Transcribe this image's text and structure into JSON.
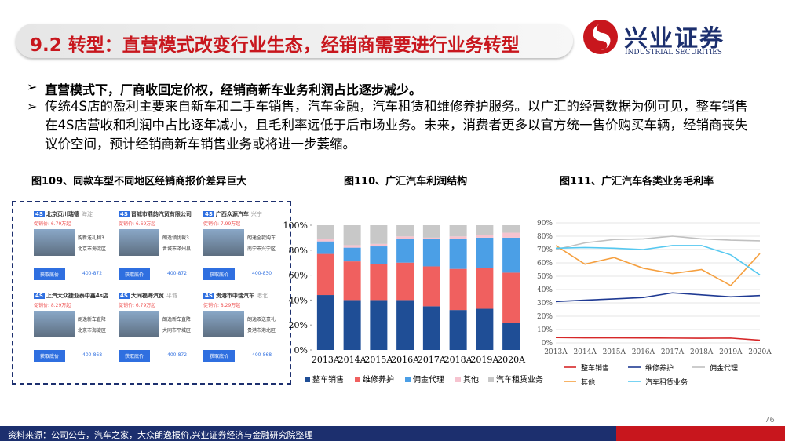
{
  "header": {
    "title": "9.2 转型：直营模式改变行业生态，经销商需要进行业务转型",
    "logo_cn": "兴业证券",
    "logo_en": "INDUSTRIAL SECURITIES"
  },
  "bullets": [
    "直营模式下，厂商收回定价权，经销商新车业务利润占比逐步减少。",
    "传统4S店的盈利主要来自新车和二手车销售，汽车金融，汽车租赁和维修养护服务。以广汇的经营数据为例可见，整车销售在4S店营收和利润中占比逐年减小，且毛利率远低于后市场业务。未来，消费者更多以官方统一售价购买车辆，经销商丧失议价空间，预计经销商新车销售业务或将进一步萎缩。"
  ],
  "figures": [
    "图109、同款车型不同地区经销商报价差异巨大",
    "图110、广汇汽车利润结构",
    "图111、广汇汽车各类业务毛利率"
  ],
  "screenshot": {
    "badge": "4S",
    "button": "获取底价",
    "cards": [
      {
        "name": "北京页川瑞德",
        "area": "海淀",
        "price": "促销价: 6.79万起",
        "promo": "购新送礼利3",
        "address": "北京市海淀区",
        "phone": "400-872"
      },
      {
        "name": "晋城市鼎韵汽贸有限公司",
        "price": "促销价: 6.69万起",
        "promo": "朗逸领优裁3",
        "address": "晋城市泽州县",
        "phone": "400-872"
      },
      {
        "name": "广西众源汽车",
        "area": "兴宁",
        "price": "促销价: 7.99万起",
        "promo": "朗逸全款购车",
        "address": "南宁市兴宁区",
        "phone": "400-830"
      },
      {
        "name": "上汽大众捷亚泰中鑫4s店",
        "price": "促销价: 8.29万起",
        "promo": "朗逸新车直降",
        "address": "北京市海淀区",
        "phone": "400-868"
      },
      {
        "name": "大同福海汽贸",
        "area": "平城",
        "price": "促销价: 6.79万起",
        "promo": "朗逸新车直降",
        "address": "大同市平城区",
        "phone": "400-872"
      },
      {
        "name": "贵港市中瑞汽车",
        "area": "港北",
        "price": "促销价: 8.29万起",
        "promo": "朗逸双送豪礼",
        "address": "贵港市港北区",
        "phone": "400-868"
      }
    ]
  },
  "chart_data": [
    {
      "type": "bar",
      "stacked": true,
      "categories": [
        "2013A",
        "2014A",
        "2015A",
        "2016A",
        "2017A",
        "2018A",
        "2019A",
        "2020A"
      ],
      "ylim": [
        0,
        100
      ],
      "yticks": [
        {
          "value": 0,
          "label": "0%"
        },
        {
          "value": 20,
          "label": "20%"
        },
        {
          "value": 40,
          "label": "40%"
        },
        {
          "value": 60,
          "label": "60%"
        },
        {
          "value": 80,
          "label": "80%"
        },
        {
          "value": 100,
          "label": "100%"
        }
      ],
      "series": [
        {
          "name": "整车销售",
          "color": "#1f4e96",
          "values": [
            44,
            40,
            40,
            40,
            35,
            32,
            33,
            22
          ]
        },
        {
          "name": "维修养护",
          "color": "#f0605f",
          "values": [
            33,
            31,
            29,
            30,
            32,
            33,
            33,
            40
          ]
        },
        {
          "name": "佣金代理",
          "color": "#4b9fe6",
          "values": [
            10,
            11,
            14,
            19,
            22,
            24,
            24,
            28
          ]
        },
        {
          "name": "其他",
          "color": "#f6c3cf",
          "values": [
            2,
            2,
            2,
            2,
            1,
            2,
            2,
            4
          ]
        },
        {
          "name": "汽车租赁业务",
          "color": "#c8c8c8",
          "values": [
            11,
            16,
            15,
            9,
            10,
            9,
            8,
            6
          ]
        }
      ]
    },
    {
      "type": "line",
      "categories": [
        "2013A",
        "2014A",
        "2015A",
        "2016A",
        "2017A",
        "2018A",
        "2019A",
        "2020A"
      ],
      "ylim": [
        0,
        90
      ],
      "grid": true,
      "yticks": [
        {
          "value": 0,
          "label": "0%"
        },
        {
          "value": 10,
          "label": "10%"
        },
        {
          "value": 20,
          "label": "20%"
        },
        {
          "value": 30,
          "label": "30%"
        },
        {
          "value": 40,
          "label": "40%"
        },
        {
          "value": 50,
          "label": "50%"
        },
        {
          "value": 60,
          "label": "60%"
        },
        {
          "value": 70,
          "label": "70%"
        },
        {
          "value": 80,
          "label": "80%"
        },
        {
          "value": 90,
          "label": "90%"
        }
      ],
      "series": [
        {
          "name": "整车销售",
          "color": "#d62728",
          "values": [
            4,
            3.8,
            3.8,
            3.7,
            3.6,
            3.5,
            3.6,
            2
          ]
        },
        {
          "name": "维修养护",
          "color": "#1f3a93",
          "values": [
            31,
            32,
            33,
            34,
            37.5,
            36,
            34.5,
            35.5
          ]
        },
        {
          "name": "佣金代理",
          "color": "#c0c0c0",
          "values": [
            70,
            75,
            77.5,
            78,
            80,
            78,
            77,
            76.5
          ]
        },
        {
          "name": "其他",
          "color": "#f5a040",
          "values": [
            73,
            59,
            64,
            56,
            52,
            55,
            43,
            67
          ]
        },
        {
          "name": "汽车租赁业务",
          "color": "#55c8f0",
          "values": [
            71,
            71.5,
            71,
            70,
            73,
            73,
            66,
            51
          ]
        }
      ]
    }
  ],
  "footer": {
    "source": "资料来源：公司公告，汽车之家，大众朗逸报价,兴业证券经济与金融研究院整理",
    "page": "76"
  }
}
